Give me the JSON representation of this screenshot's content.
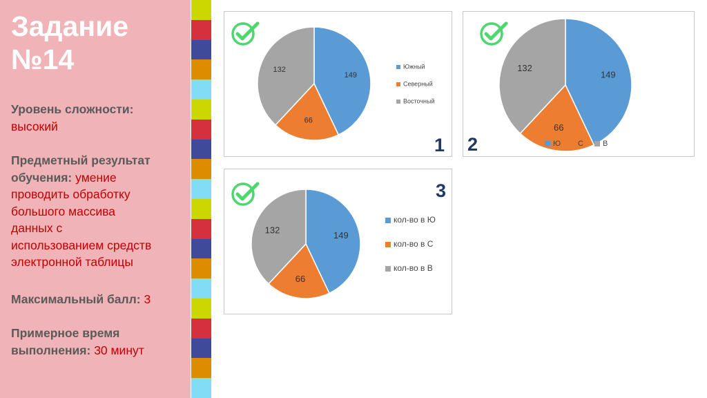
{
  "slide": {
    "title_line1": "Задание",
    "title_line2": "№14",
    "difficulty_label": "Уровень сложности:",
    "difficulty_value": "высокий",
    "subject_label_1": "Предметный результат",
    "subject_label_2": "обучения:",
    "subject_value_1": "умение",
    "subject_value_2": "проводить обработку",
    "subject_value_3": "большого массива",
    "subject_value_4": "данных с",
    "subject_value_5": "использованием средств",
    "subject_value_6": "электронной таблицы",
    "max_score_label": "Максимальный балл:",
    "max_score_value": "3",
    "time_label_1": "Примерное время",
    "time_label_2": "выполнения:",
    "time_value": "30 минут"
  },
  "stripe_colors": [
    "#ccd600",
    "#d5303e",
    "#3f4b9a",
    "#dd8c00",
    "#82dcf6"
  ],
  "check_color": "#4ed66f",
  "panel_numbers": [
    "1",
    "2",
    "3"
  ],
  "chart_data": [
    {
      "type": "pie",
      "values": [
        149,
        66,
        132
      ],
      "legend": [
        "Южный",
        "Северный",
        "Восточный"
      ],
      "colors": [
        "#5b9bd5",
        "#ed7d31",
        "#a5a5a5"
      ],
      "legend_position": "right"
    },
    {
      "type": "pie",
      "values": [
        149,
        66,
        132
      ],
      "legend": [
        "Ю",
        "С",
        "В"
      ],
      "colors": [
        "#5b9bd5",
        "#ed7d31",
        "#a5a5a5"
      ],
      "legend_position": "bottom"
    },
    {
      "type": "pie",
      "values": [
        149,
        66,
        132
      ],
      "legend": [
        "кол-во в Ю",
        "кол-во в С",
        "кол-во в В"
      ],
      "colors": [
        "#5b9bd5",
        "#ed7d31",
        "#a5a5a5"
      ],
      "legend_position": "right"
    }
  ]
}
